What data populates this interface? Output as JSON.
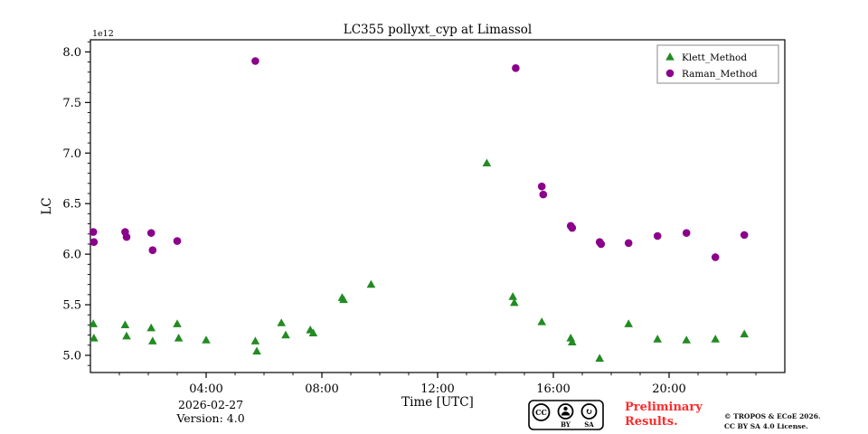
{
  "chart_data": {
    "type": "scatter",
    "title": "LC355 pollyxt_cyp at Limassol",
    "xlabel": "Time [UTC]",
    "ylabel": "LC",
    "offset_label": "1e12",
    "xlim": [
      0,
      24
    ],
    "ylim": [
      4.83,
      8.12
    ],
    "grid": false,
    "legend_position": "top-right",
    "xticks": [
      {
        "v": 4,
        "label": "04:00"
      },
      {
        "v": 8,
        "label": "08:00"
      },
      {
        "v": 12,
        "label": "12:00"
      },
      {
        "v": 16,
        "label": "16:00"
      },
      {
        "v": 20,
        "label": "20:00"
      }
    ],
    "x_minor_step": 1,
    "yticks": [
      {
        "v": 5.0,
        "label": "5.0"
      },
      {
        "v": 5.5,
        "label": "5.5"
      },
      {
        "v": 6.0,
        "label": "6.0"
      },
      {
        "v": 6.5,
        "label": "6.5"
      },
      {
        "v": 7.0,
        "label": "7.0"
      },
      {
        "v": 7.5,
        "label": "7.5"
      },
      {
        "v": 8.0,
        "label": "8.0"
      }
    ],
    "y_minor_step": 0.1,
    "series": [
      {
        "name": "Klett_Method",
        "marker": "triangle",
        "color": "#228B22",
        "points": [
          [
            0.1,
            5.31
          ],
          [
            0.12,
            5.17
          ],
          [
            1.2,
            5.3
          ],
          [
            1.25,
            5.19
          ],
          [
            2.1,
            5.27
          ],
          [
            2.15,
            5.14
          ],
          [
            3.0,
            5.31
          ],
          [
            3.05,
            5.17
          ],
          [
            4.0,
            5.15
          ],
          [
            5.7,
            5.14
          ],
          [
            5.75,
            5.04
          ],
          [
            6.6,
            5.32
          ],
          [
            6.75,
            5.2
          ],
          [
            7.6,
            5.25
          ],
          [
            7.7,
            5.22
          ],
          [
            8.7,
            5.57
          ],
          [
            8.75,
            5.55
          ],
          [
            9.7,
            5.7
          ],
          [
            13.7,
            6.9
          ],
          [
            14.6,
            5.58
          ],
          [
            14.65,
            5.52
          ],
          [
            15.6,
            5.33
          ],
          [
            16.6,
            5.17
          ],
          [
            16.65,
            5.13
          ],
          [
            17.6,
            4.97
          ],
          [
            18.6,
            5.31
          ],
          [
            19.6,
            5.16
          ],
          [
            20.6,
            5.15
          ],
          [
            21.6,
            5.16
          ],
          [
            22.6,
            5.21
          ]
        ]
      },
      {
        "name": "Raman_Method",
        "marker": "circle",
        "color": "#8B008B",
        "points": [
          [
            0.1,
            6.22
          ],
          [
            0.12,
            6.12
          ],
          [
            1.2,
            6.22
          ],
          [
            1.25,
            6.17
          ],
          [
            2.1,
            6.21
          ],
          [
            2.15,
            6.04
          ],
          [
            3.0,
            6.13
          ],
          [
            5.7,
            7.91
          ],
          [
            14.7,
            7.84
          ],
          [
            15.6,
            6.67
          ],
          [
            15.65,
            6.59
          ],
          [
            16.6,
            6.28
          ],
          [
            16.65,
            6.26
          ],
          [
            17.6,
            6.12
          ],
          [
            17.65,
            6.1
          ],
          [
            18.6,
            6.11
          ],
          [
            19.6,
            6.18
          ],
          [
            20.6,
            6.21
          ],
          [
            21.6,
            5.97
          ],
          [
            22.6,
            6.19
          ]
        ]
      }
    ]
  },
  "footer": {
    "date": "2026-02-27",
    "version": "Version: 4.0",
    "preliminary_line1": "Preliminary",
    "preliminary_line2": "Results.",
    "license_line1": "© TROPOS & ECoE 2026.",
    "license_line2": "CC BY SA 4.0 License.",
    "badge": {
      "cc": "CC",
      "by": "BY",
      "sa": "SA"
    }
  },
  "colors": {
    "klett": "#228B22",
    "raman": "#8B008B",
    "preliminary": "#FF2A2A",
    "axis": "#000000",
    "legend_border": "#888888"
  }
}
